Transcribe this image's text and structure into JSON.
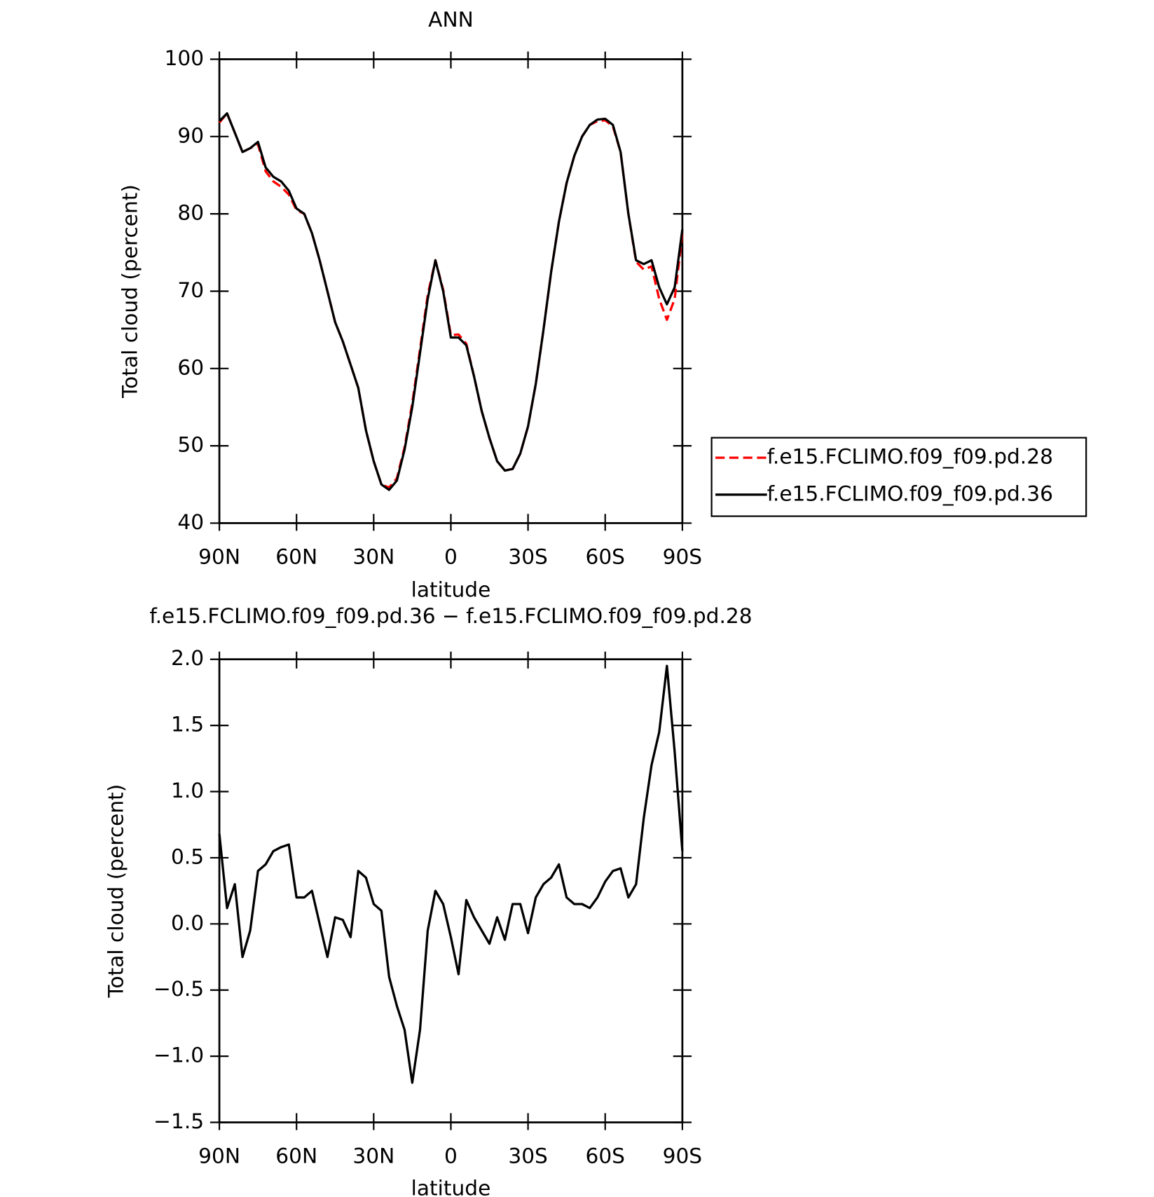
{
  "chart_data": [
    {
      "type": "line",
      "title": "ANN",
      "xlabel": "latitude",
      "ylabel": "Total cloud (percent)",
      "x": [
        90,
        87,
        84,
        81,
        78,
        75,
        72,
        69,
        66,
        63,
        60,
        57,
        54,
        51,
        48,
        45,
        42,
        39,
        36,
        33,
        30,
        27,
        24,
        21,
        18,
        15,
        12,
        9,
        6,
        3,
        0,
        -3,
        -6,
        -9,
        -12,
        -15,
        -18,
        -21,
        -24,
        -27,
        -30,
        -33,
        -36,
        -39,
        -42,
        -45,
        -48,
        -51,
        -54,
        -57,
        -60,
        -63,
        -66,
        -69,
        -72,
        -75,
        -78,
        -81,
        -84,
        -87,
        -90
      ],
      "xlim": [
        90,
        -90
      ],
      "xticks": [
        {
          "value": 90,
          "label": "90N"
        },
        {
          "value": 60,
          "label": "60N"
        },
        {
          "value": 30,
          "label": "30N"
        },
        0,
        {
          "value": -30,
          "label": "30S"
        },
        {
          "value": -60,
          "label": "60S"
        },
        {
          "value": -90,
          "label": "90S"
        }
      ],
      "ylim": [
        40,
        100
      ],
      "yticks": [
        40,
        50,
        60,
        70,
        80,
        90,
        100
      ],
      "legend": "right",
      "series": [
        {
          "name": "f.e15.FCLIMO.f09_f09.pd.28",
          "color": "#ff0000",
          "dashed": true,
          "values": [
            91.8,
            93,
            90.5,
            88,
            88.5,
            89,
            85.5,
            84.2,
            83.5,
            82.5,
            80.5,
            80,
            77.5,
            74,
            70,
            66,
            63.5,
            60.5,
            57.5,
            52,
            48,
            45,
            44.6,
            45.8,
            49.8,
            55.5,
            62.5,
            69.5,
            74,
            70.2,
            64.3,
            64.4,
            63.2,
            59,
            54.5,
            51,
            48,
            46.8,
            47,
            49,
            52.5,
            58,
            65,
            72.5,
            79,
            84,
            87.5,
            90,
            91.5,
            92,
            92.1,
            91.3,
            88,
            80,
            73.8,
            72.8,
            73.2,
            69,
            66.3,
            69,
            77.5
          ]
        },
        {
          "name": "f.e15.FCLIMO.f09_f09.pd.36",
          "color": "#000000",
          "dashed": false,
          "values": [
            92,
            93,
            90.5,
            88,
            88.5,
            89.3,
            86,
            84.8,
            84.2,
            83,
            80.7,
            80,
            77.5,
            74,
            70,
            66,
            63.5,
            60.5,
            57.5,
            52,
            48,
            45,
            44.3,
            45.5,
            49.5,
            55,
            62,
            69,
            74,
            70,
            64,
            64,
            63,
            59,
            54.5,
            51,
            48,
            46.8,
            47,
            49,
            52.5,
            58,
            65,
            72.5,
            79,
            84,
            87.5,
            90,
            91.5,
            92.2,
            92.3,
            91.5,
            88,
            80,
            74,
            73.5,
            74,
            70.5,
            68.3,
            70.5,
            78
          ]
        }
      ]
    },
    {
      "type": "line",
      "title": "f.e15.FCLIMO.f09_f09.pd.36 − f.e15.FCLIMO.f09_f09.pd.28",
      "xlabel": "latitude",
      "ylabel": "Total cloud (percent)",
      "x": [
        90,
        87,
        84,
        81,
        78,
        75,
        72,
        69,
        66,
        63,
        60,
        57,
        54,
        51,
        48,
        45,
        42,
        39,
        36,
        33,
        30,
        27,
        24,
        21,
        18,
        15,
        12,
        9,
        6,
        3,
        0,
        -3,
        -6,
        -9,
        -12,
        -15,
        -18,
        -21,
        -24,
        -27,
        -30,
        -33,
        -36,
        -39,
        -42,
        -45,
        -48,
        -51,
        -54,
        -57,
        -60,
        -63,
        -66,
        -69,
        -72,
        -75,
        -78,
        -81,
        -84,
        -87,
        -90
      ],
      "xlim": [
        90,
        -90
      ],
      "xticks": [
        {
          "value": 90,
          "label": "90N"
        },
        {
          "value": 60,
          "label": "60N"
        },
        {
          "value": 30,
          "label": "30N"
        },
        0,
        {
          "value": -30,
          "label": "30S"
        },
        {
          "value": -60,
          "label": "60S"
        },
        {
          "value": -90,
          "label": "90S"
        }
      ],
      "ylim": [
        -1.5,
        2
      ],
      "yticks": [
        {
          "value": -1.5,
          "label": "−1.5"
        },
        {
          "value": -1,
          "label": "−1.0"
        },
        {
          "value": -0.5,
          "label": "−0.5"
        },
        {
          "value": 0,
          "label": "0.0"
        },
        0.5,
        {
          "value": 1,
          "label": "1.0"
        },
        1.5,
        {
          "value": 2,
          "label": "2.0"
        }
      ],
      "series": [
        {
          "color": "#000000",
          "dashed": false,
          "values": [
            0.68,
            0.12,
            0.3,
            -0.25,
            -0.05,
            0.4,
            0.45,
            0.55,
            0.58,
            0.6,
            0.2,
            0.2,
            0.25,
            0,
            -0.25,
            0.05,
            0.03,
            -0.1,
            0.4,
            0.35,
            0.15,
            0.1,
            -0.4,
            -0.62,
            -0.8,
            -1.2,
            -0.8,
            -0.05,
            0.25,
            0.15,
            -0.1,
            -0.38,
            0.18,
            0.05,
            -0.05,
            -0.15,
            0.05,
            -0.12,
            0.15,
            0.15,
            -0.07,
            0.2,
            0.3,
            0.35,
            0.45,
            0.2,
            0.15,
            0.15,
            0.12,
            0.2,
            0.32,
            0.4,
            0.42,
            0.2,
            0.3,
            0.8,
            1.2,
            1.45,
            1.95,
            1.3,
            0.55
          ]
        }
      ]
    }
  ]
}
